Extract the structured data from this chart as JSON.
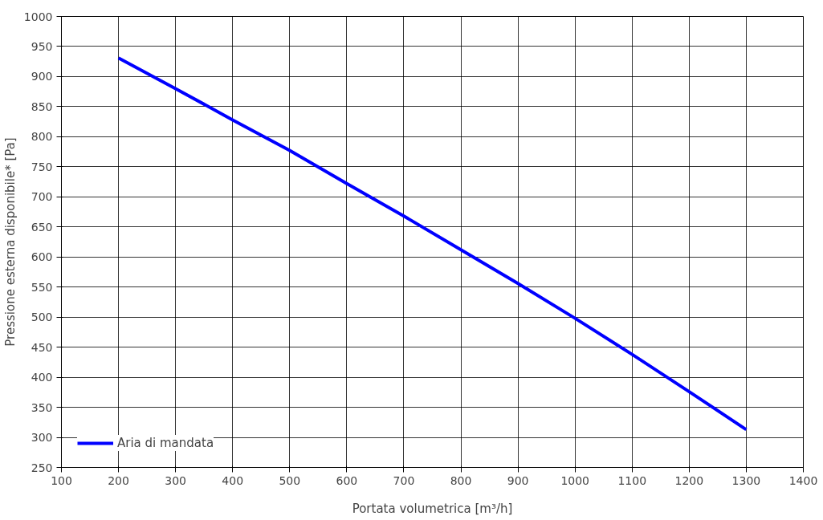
{
  "chart_data": {
    "type": "line",
    "xlabel": "Portata volumetrica [m³/h]",
    "ylabel": "Pressione esterna disponibile* [Pa]",
    "x": [
      200,
      300,
      400,
      500,
      600,
      700,
      800,
      900,
      1000,
      1100,
      1200,
      1300
    ],
    "series": [
      {
        "name": "Aria di mandata",
        "color": "#0000ff",
        "values": [
          931,
          880,
          828,
          777,
          722,
          668,
          612,
          556,
          498,
          438,
          376,
          313
        ]
      }
    ],
    "xlim": [
      100,
      1400
    ],
    "xticks": [
      100,
      200,
      300,
      400,
      500,
      600,
      700,
      800,
      900,
      1000,
      1100,
      1200,
      1300,
      1400
    ],
    "ylim": [
      250,
      1000
    ],
    "yticks": [
      250,
      300,
      350,
      400,
      450,
      500,
      550,
      600,
      650,
      700,
      750,
      800,
      850,
      900,
      950,
      1000
    ],
    "grid": true,
    "legend": "bottom left",
    "marker": "none",
    "line_style": "solid"
  }
}
